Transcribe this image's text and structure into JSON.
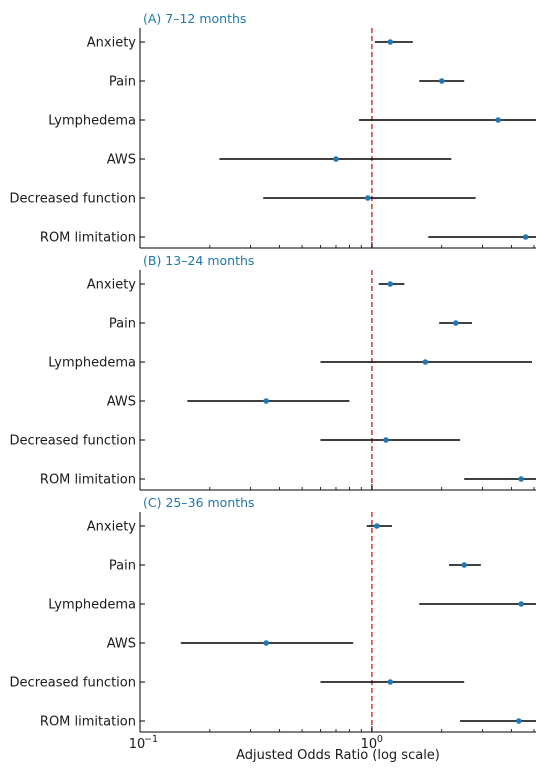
{
  "chart_data": {
    "type": "forest",
    "xlabel": "Adjusted Odds Ratio (log scale)",
    "xscale": "log",
    "xlim": [
      0.1,
      5.1
    ],
    "xticks": [
      {
        "value": 0.1,
        "label": "10",
        "exp": "−1"
      },
      {
        "value": 1,
        "label": "10",
        "exp": "0"
      }
    ],
    "reference_line": 1,
    "colors": {
      "point": "#1f77b4",
      "reference": "#d62728",
      "ci": "#000000",
      "title": "#1f7aa8"
    },
    "categories": [
      "Anxiety",
      "Pain",
      "Lymphedema",
      "AWS",
      "Decreased function",
      "ROM limitation"
    ],
    "panels": [
      {
        "title": "(A) 7–12 months",
        "or": [
          1.2,
          2.0,
          3.5,
          0.7,
          0.96,
          4.6
        ],
        "low": [
          1.03,
          1.6,
          0.88,
          0.22,
          0.34,
          1.75
        ],
        "high": [
          1.5,
          2.5,
          5.1,
          2.2,
          2.8,
          5.1
        ]
      },
      {
        "title": "(B) 13–24 months",
        "or": [
          1.2,
          2.3,
          1.7,
          0.35,
          1.15,
          4.4
        ],
        "low": [
          1.07,
          1.95,
          0.6,
          0.16,
          0.6,
          2.5
        ],
        "high": [
          1.38,
          2.7,
          4.9,
          0.8,
          2.4,
          5.1
        ]
      },
      {
        "title": "(C) 25–36 months",
        "or": [
          1.05,
          2.5,
          4.4,
          0.35,
          1.2,
          4.3
        ],
        "low": [
          0.95,
          2.15,
          1.6,
          0.15,
          0.6,
          2.4
        ],
        "high": [
          1.22,
          2.95,
          5.1,
          0.83,
          2.5,
          5.1
        ]
      }
    ]
  }
}
